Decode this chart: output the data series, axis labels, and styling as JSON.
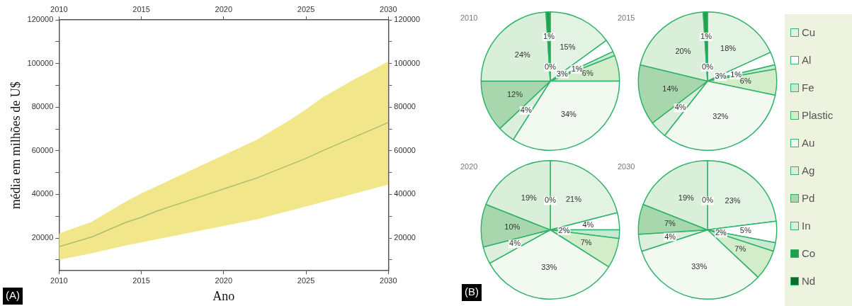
{
  "chart_data": [
    {
      "type": "line",
      "xlabel": "Ano",
      "ylabel": "média em milhões de U$",
      "annotations": [
        "(A)"
      ],
      "x": [
        2010,
        2012,
        2014,
        2015,
        2016,
        2018,
        2020,
        2022,
        2024,
        2025,
        2026,
        2028,
        2030
      ],
      "series": [
        {
          "color": "#a9bf6e",
          "values": [
            16000,
            20500,
            27000,
            29500,
            32500,
            37500,
            42500,
            47500,
            53500,
            56500,
            60000,
            66500,
            73000
          ],
          "lower": [
            10000,
            13000,
            16500,
            18000,
            19500,
            22500,
            25500,
            28500,
            32500,
            34500,
            36500,
            40500,
            44500
          ],
          "upper": [
            22000,
            27500,
            36500,
            40500,
            44000,
            51000,
            58000,
            65000,
            74000,
            79000,
            84500,
            93000,
            101000
          ]
        }
      ],
      "xlim": [
        2010,
        2030
      ],
      "xticks": [
        2010,
        2015,
        2020,
        2025,
        2030
      ],
      "x2lim": [
        2010,
        2030
      ],
      "x2ticks": [
        2010,
        2015,
        2020,
        2025,
        2030
      ],
      "ylim": [
        5000,
        120000
      ],
      "yticks": [
        {
          "value": 10000,
          "label": null
        },
        20000,
        {
          "value": 30000,
          "label": null
        },
        40000,
        {
          "value": 50000,
          "label": null
        },
        60000,
        {
          "value": 70000,
          "label": null
        },
        80000,
        {
          "value": 90000,
          "label": null
        },
        100000,
        {
          "value": 110000,
          "label": null
        },
        120000
      ],
      "y2lim": [
        5000,
        120000
      ],
      "y2ticks": [
        {
          "value": 10000,
          "label": null
        },
        20000,
        {
          "value": 30000,
          "label": null
        },
        40000,
        {
          "value": 50000,
          "label": null
        },
        60000,
        {
          "value": 70000,
          "label": null
        },
        80000,
        {
          "value": 90000,
          "label": null
        },
        100000,
        {
          "value": 110000,
          "label": null
        },
        120000
      ],
      "grid": false,
      "legend": false
    },
    {
      "type": "pie",
      "title": "2010",
      "legend": "right",
      "categories": [
        "Cu",
        "Al",
        "Fe",
        "Plastic",
        "Au",
        "Ag",
        "Pd",
        "In",
        "Co",
        "Nd"
      ],
      "colors": [
        "#e2f3e4",
        "#ffffff",
        "#c9ead2",
        "#d3ecc9",
        "#f1f9f1",
        "#dcefdc",
        "#a8d7ad",
        "#d9efd9",
        "#1fa04b",
        "#0b6b2a"
      ],
      "values": [
        15,
        3,
        1,
        6,
        34,
        4,
        12,
        24,
        1,
        0
      ],
      "value_labels": [
        "15%",
        "3%",
        "1%",
        "6%",
        "34%",
        "4%",
        "12%",
        "24%",
        "1%",
        "0%"
      ]
    },
    {
      "type": "pie",
      "title": "2015",
      "categories": [
        null,
        null,
        null,
        null,
        null,
        null,
        null,
        null,
        null,
        null
      ],
      "colors": [
        "#e2f3e4",
        "#ffffff",
        "#c9ead2",
        "#d3ecc9",
        "#f1f9f1",
        "#dcefdc",
        "#a8d7ad",
        "#d9efd9",
        "#1fa04b",
        "#0b6b2a"
      ],
      "values": [
        18,
        3,
        1,
        6,
        32,
        4,
        14,
        20,
        1,
        0
      ],
      "value_labels": [
        "18%",
        "3%",
        "1%",
        "6%",
        "32%",
        "4%",
        "14%",
        "20%",
        "1%",
        "0%"
      ]
    },
    {
      "type": "pie",
      "title": "2020",
      "annotations": [
        "(B)"
      ],
      "categories": [
        null,
        null,
        null,
        null,
        null,
        null,
        null,
        null,
        null,
        null
      ],
      "colors": [
        "#e2f3e4",
        "#ffffff",
        "#c9ead2",
        "#d3ecc9",
        "#f1f9f1",
        "#dcefdc",
        "#a8d7ad",
        "#d9efd9",
        "#1fa04b",
        "#0b6b2a"
      ],
      "values": [
        21,
        4,
        2,
        7,
        33,
        4,
        10,
        19,
        0,
        0
      ],
      "value_labels": [
        "21%",
        "4%",
        "2%",
        "7%",
        "33%",
        "4%",
        "10%",
        "19%",
        "0%",
        null
      ]
    },
    {
      "type": "pie",
      "title": "2030",
      "categories": [
        null,
        null,
        null,
        null,
        null,
        null,
        null,
        null,
        null,
        null
      ],
      "colors": [
        "#e2f3e4",
        "#ffffff",
        "#c9ead2",
        "#d3ecc9",
        "#f1f9f1",
        "#dcefdc",
        "#a8d7ad",
        "#d9efd9",
        "#1fa04b",
        "#0b6b2a"
      ],
      "values": [
        23,
        5,
        2,
        7,
        33,
        4,
        7,
        19,
        0,
        0
      ],
      "value_labels": [
        "23%",
        "5%",
        "2%",
        "7%",
        "33%",
        "4%",
        "7%",
        "19%",
        "0%",
        null
      ]
    }
  ]
}
